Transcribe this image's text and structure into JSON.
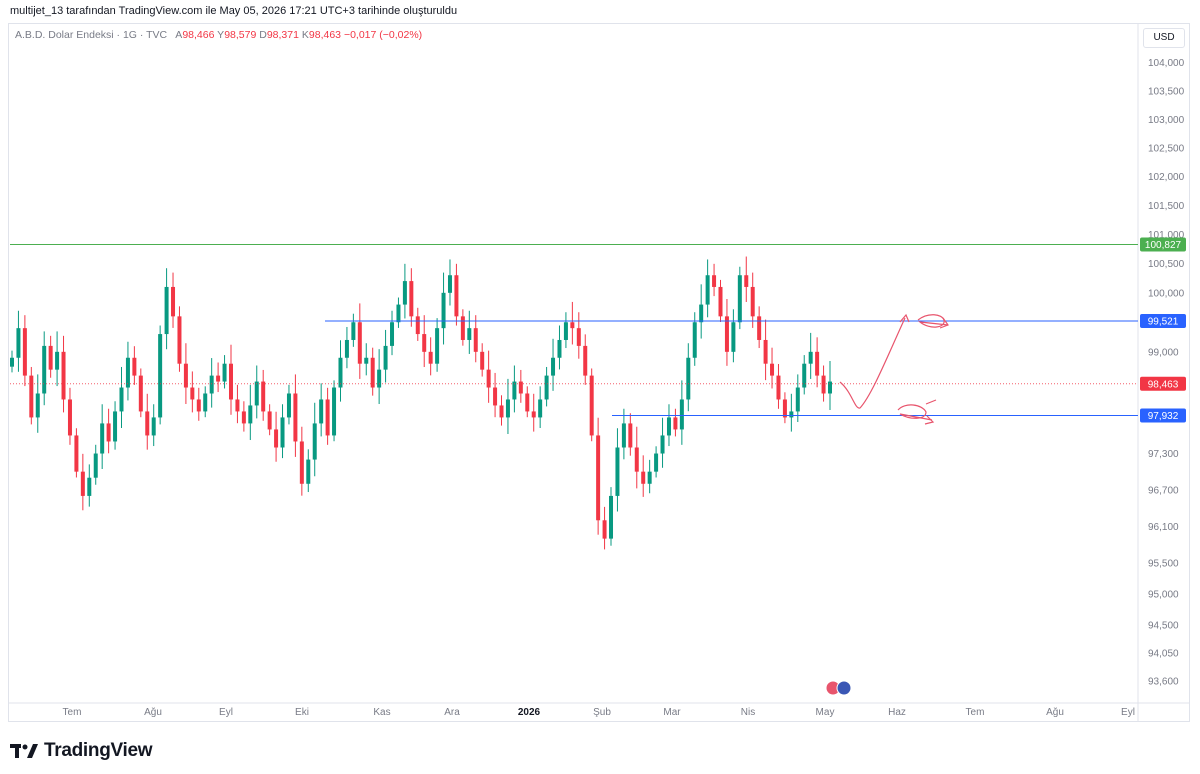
{
  "header": {
    "title": "multijet_13 tarafından TradingView.com ile May 05, 2026 17:21 UTC+3 tarihinde oluşturuldu"
  },
  "legend": {
    "symbol": "A.B.D. Dolar Endeksi · 1G · TVC",
    "open_label": "A",
    "open": "98,466",
    "high_label": "Y",
    "high": "98,579",
    "low_label": "D",
    "low": "98,371",
    "close_label": "K",
    "close": "98,463",
    "change": "−0,017 (−0,02%)"
  },
  "currency": "USD",
  "footer": {
    "brand": "TradingView"
  },
  "colors": {
    "up": "#089981",
    "down": "#f23645",
    "level_blue": "#2962ff",
    "level_green": "#4caf50",
    "last_price": "#f23645",
    "drawing": "#e8556d"
  },
  "chart_data": {
    "type": "candlestick",
    "y_scale": "log",
    "ylim": [
      93.3,
      104.4
    ],
    "y_ticks": [
      "104,000",
      "103,500",
      "103,000",
      "102,500",
      "102,000",
      "101,500",
      "101,000",
      "100,500",
      "100,000",
      "99,000",
      "97,300",
      "96,700",
      "96,100",
      "95,500",
      "95,000",
      "94,500",
      "94,050",
      "93,600"
    ],
    "x_ticks": [
      "Tem",
      "Ağu",
      "Eyl",
      "Eki",
      "Kas",
      "Ara",
      "2026",
      "Şub",
      "Mar",
      "Nis",
      "May",
      "Haz",
      "Tem",
      "Ağu",
      "Eyl"
    ],
    "x_bold": [
      "2026"
    ],
    "series_close": [
      98.9,
      99.4,
      98.6,
      97.9,
      98.3,
      99.1,
      98.7,
      99.0,
      98.2,
      97.6,
      97.0,
      96.6,
      96.9,
      97.3,
      97.8,
      97.5,
      98.0,
      98.4,
      98.9,
      98.6,
      98.0,
      97.6,
      97.9,
      99.3,
      100.1,
      99.6,
      98.8,
      98.4,
      98.2,
      98.0,
      98.3,
      98.6,
      98.5,
      98.8,
      98.2,
      98.0,
      97.8,
      98.1,
      98.5,
      98.0,
      97.7,
      97.4,
      97.9,
      98.3,
      97.5,
      96.8,
      97.2,
      97.8,
      98.2,
      97.6,
      98.4,
      98.9,
      99.2,
      99.5,
      98.8,
      98.9,
      98.4,
      98.7,
      99.1,
      99.5,
      99.8,
      100.2,
      99.6,
      99.3,
      99.0,
      98.8,
      99.4,
      100.0,
      100.3,
      99.6,
      99.2,
      99.4,
      99.0,
      98.7,
      98.4,
      98.1,
      97.9,
      98.2,
      98.5,
      98.3,
      98.0,
      97.9,
      98.2,
      98.6,
      98.9,
      99.2,
      99.5,
      99.4,
      99.1,
      98.6,
      97.6,
      96.2,
      95.9,
      96.6,
      97.4,
      97.8,
      97.4,
      97.0,
      96.8,
      97.0,
      97.3,
      97.6,
      97.9,
      97.7,
      98.2,
      98.9,
      99.5,
      99.8,
      100.3,
      100.1,
      99.6,
      99.0,
      99.5,
      100.3,
      100.1,
      99.6,
      99.2,
      98.8,
      98.6,
      98.2,
      97.9,
      98.0,
      98.4,
      98.8,
      99.0,
      98.6,
      98.3,
      98.5
    ],
    "levels": [
      {
        "value": 100.827,
        "label": "100,827",
        "color": "#4caf50"
      },
      {
        "value": 99.521,
        "label": "99,521",
        "color": "#2962ff"
      },
      {
        "value": 97.932,
        "label": "97,932",
        "color": "#2962ff"
      }
    ],
    "last_price": {
      "value": 98.463,
      "label": "98,463"
    },
    "grid": false,
    "annotations": "hand-drawn forecast arrows"
  }
}
